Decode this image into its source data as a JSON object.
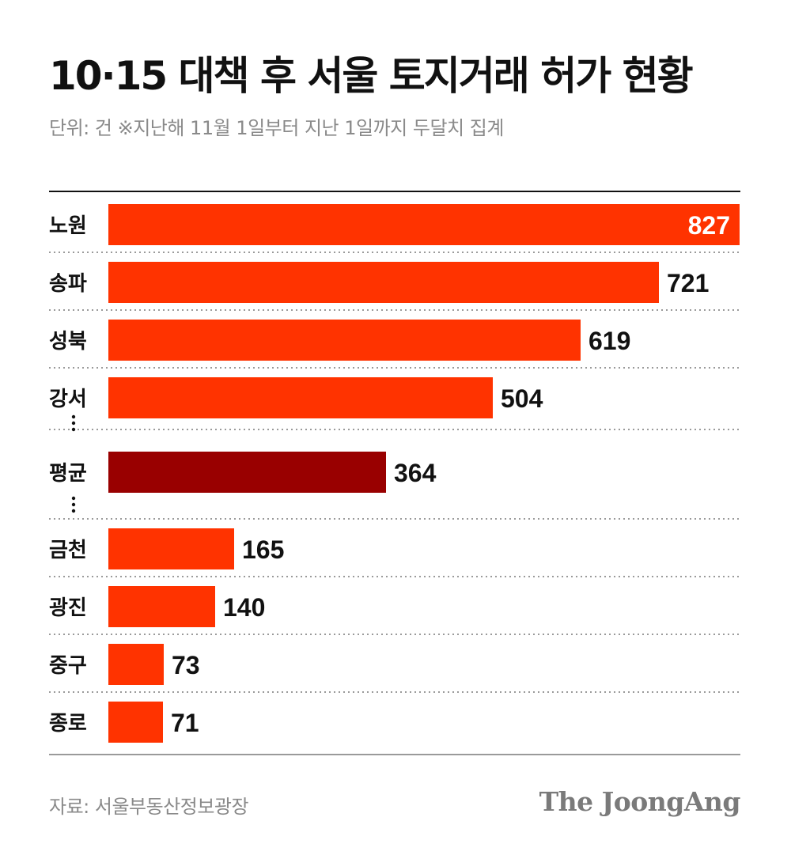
{
  "header": {
    "title": "10·15 대책 후 서울 토지거래 허가 현황",
    "subtitle": "단위: 건  ※지난해 11월 1일부터 지난 1일까지 두달치 집계"
  },
  "footer": {
    "source": "자료: 서울부동산정보광장",
    "brand": "The JoongAng"
  },
  "colors": {
    "bar": "#ff3300",
    "average_bar": "#990000",
    "label_inside": "#ffffff",
    "label_outside": "#111111",
    "rule": "#111111",
    "dots": "#9a9a9a"
  },
  "chart_data": {
    "type": "bar",
    "orientation": "horizontal",
    "title": "10·15 대책 후 서울 토지거래 허가 현황",
    "unit": "건",
    "note": "※지난해 11월 1일부터 지난 1일까지 두달치 집계",
    "categories": [
      "노원",
      "송파",
      "성북",
      "강서",
      "평균",
      "금천",
      "광진",
      "중구",
      "종로"
    ],
    "values": [
      827,
      721,
      619,
      504,
      364,
      165,
      140,
      73,
      71
    ],
    "highlight": "평균",
    "ellipsis_after": [
      "강서",
      "평균"
    ],
    "xlim": [
      0,
      827
    ],
    "grid": false,
    "legend": "none"
  }
}
